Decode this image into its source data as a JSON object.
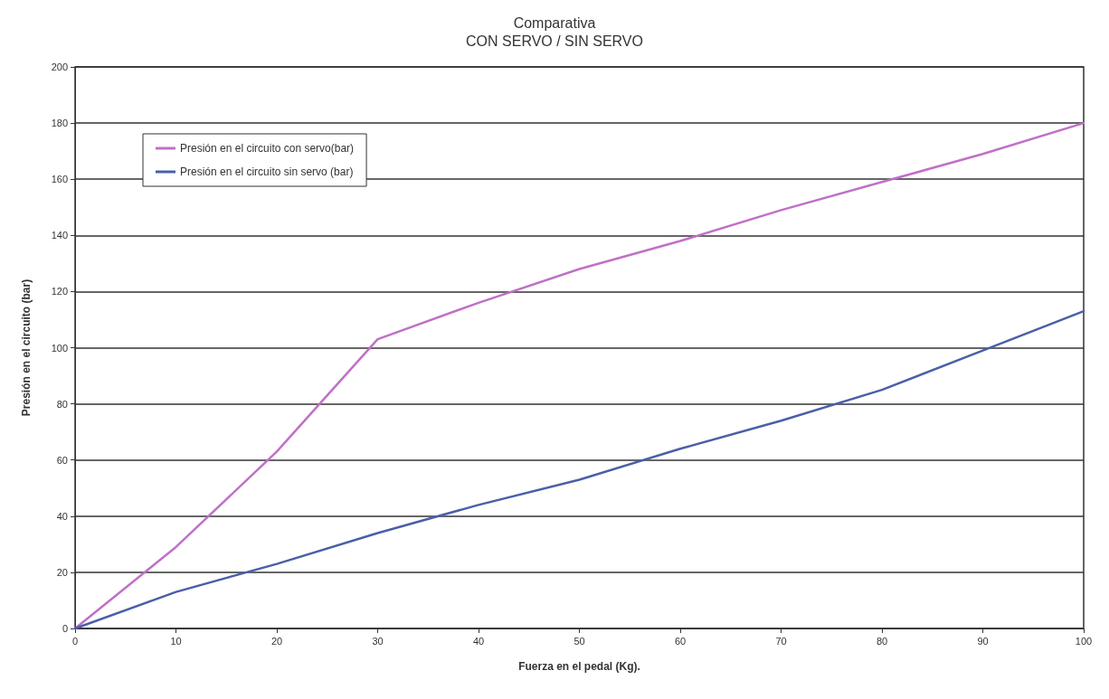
{
  "chart_data": {
    "type": "line",
    "title": "Comparativa",
    "subtitle": "CON SERVO / SIN SERVO",
    "xlabel": "Fuerza en el pedal (Kg).",
    "ylabel": "Presión en el circuito (bar)",
    "x": [
      0,
      10,
      20,
      30,
      40,
      50,
      60,
      70,
      80,
      90,
      100
    ],
    "series": [
      {
        "name": "Presión en el circuito con servo(bar)",
        "color": "#c070c8",
        "values": [
          0,
          29,
          63,
          103,
          116,
          128,
          138,
          149,
          159,
          169,
          180
        ]
      },
      {
        "name": "Presión en el circuito sin servo (bar)",
        "color": "#4a5fa8",
        "values": [
          0,
          13,
          23,
          34,
          44,
          53,
          64,
          74,
          85,
          99,
          113
        ]
      }
    ],
    "xlim": [
      0,
      100
    ],
    "xticks": [
      0,
      10,
      20,
      30,
      40,
      50,
      60,
      70,
      80,
      90,
      100
    ],
    "ylim": [
      0,
      200
    ],
    "yticks": [
      0,
      20,
      40,
      60,
      80,
      100,
      120,
      140,
      160,
      180,
      200
    ],
    "grid": "y",
    "legend": "top left",
    "marker": "none",
    "line_style": "solid"
  }
}
